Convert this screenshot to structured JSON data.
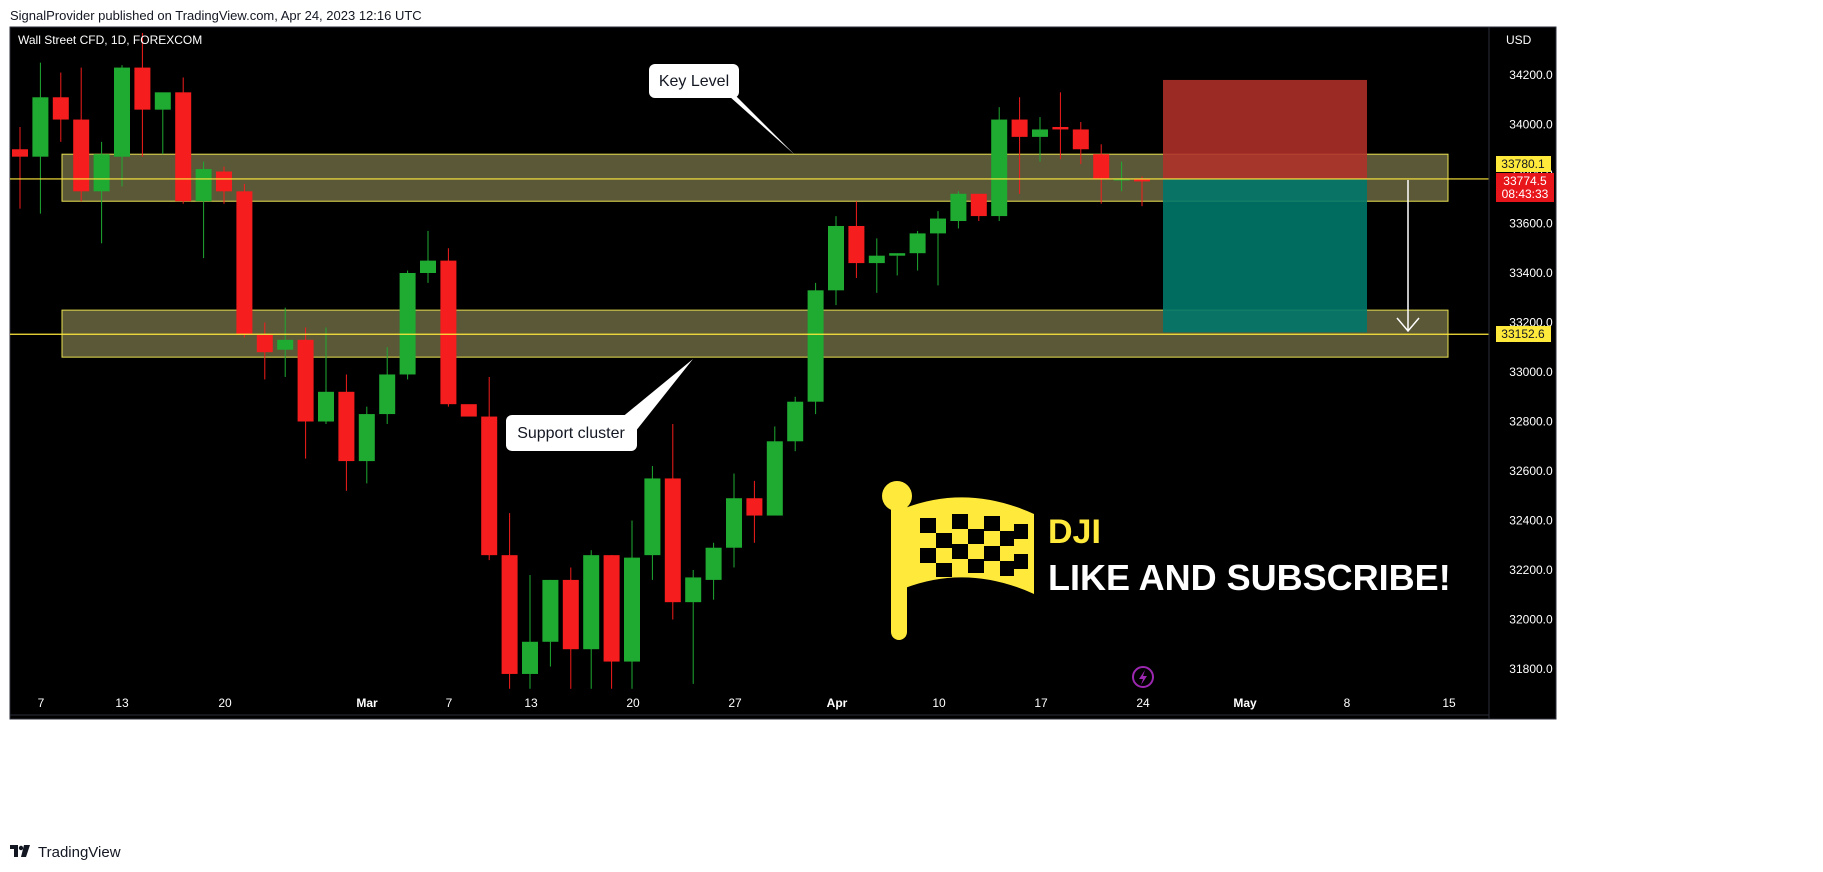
{
  "header": {
    "publish_line": "SignalProvider published on TradingView.com, Apr 24, 2023 12:16 UTC"
  },
  "footer": {
    "brand": "TradingView"
  },
  "chart_title": "Wall Street CFD, 1D, FOREXCOM",
  "currency": "USD",
  "price_labels": {
    "upper_level": "33780.1",
    "current_price": "33774.5",
    "countdown": "08:43:33",
    "lower_level": "33152.6"
  },
  "callouts": {
    "key_level": "Key Level",
    "support": "Support cluster"
  },
  "promo": {
    "ticker": "DJI",
    "cta": "LIKE AND SUBSCRIBE!"
  },
  "colors": {
    "background": "#000000",
    "up": "#1faa32",
    "down": "#f51d1d",
    "zone_fill": "#6b6742",
    "zone_border": "#e8e050",
    "flag": "#ffe93b",
    "stop_zone": "#b0302a",
    "target_zone": "#00786a",
    "price_line": "#ffe93b",
    "current_label": "#e8161b"
  },
  "chart_data": {
    "type": "candlestick",
    "title": "Wall Street CFD, 1D, FOREXCOM",
    "ylabel": "USD",
    "ylim": [
      31650,
      34450
    ],
    "y_ticks": [
      31800,
      32000,
      32200,
      32400,
      32600,
      32800,
      33000,
      33200,
      33400,
      33600,
      33800,
      34000,
      34200
    ],
    "x_ticks": [
      "7",
      "13",
      "20",
      "Mar",
      "7",
      "13",
      "20",
      "27",
      "Apr",
      "10",
      "17",
      "24",
      "May",
      "8",
      "15"
    ],
    "candles": [
      {
        "o": 33900,
        "h": 33990,
        "l": 33660,
        "c": 33870
      },
      {
        "o": 33870,
        "h": 34250,
        "l": 33640,
        "c": 34110
      },
      {
        "o": 34110,
        "h": 34210,
        "l": 33930,
        "c": 34020
      },
      {
        "o": 34020,
        "h": 34230,
        "l": 33690,
        "c": 33730
      },
      {
        "o": 33730,
        "h": 33930,
        "l": 33520,
        "c": 33880
      },
      {
        "o": 33870,
        "h": 34240,
        "l": 33750,
        "c": 34230
      },
      {
        "o": 34230,
        "h": 34370,
        "l": 33870,
        "c": 34060
      },
      {
        "o": 34060,
        "h": 34120,
        "l": 33880,
        "c": 34130
      },
      {
        "o": 34130,
        "h": 34190,
        "l": 33680,
        "c": 33690
      },
      {
        "o": 33690,
        "h": 33850,
        "l": 33460,
        "c": 33820
      },
      {
        "o": 33810,
        "h": 33830,
        "l": 33680,
        "c": 33730
      },
      {
        "o": 33730,
        "h": 33760,
        "l": 33140,
        "c": 33150
      },
      {
        "o": 33150,
        "h": 33200,
        "l": 32970,
        "c": 33080
      },
      {
        "o": 33090,
        "h": 33260,
        "l": 32980,
        "c": 33130
      },
      {
        "o": 33130,
        "h": 33180,
        "l": 32650,
        "c": 32800
      },
      {
        "o": 32800,
        "h": 33180,
        "l": 32790,
        "c": 32920
      },
      {
        "o": 32920,
        "h": 32990,
        "l": 32520,
        "c": 32640
      },
      {
        "o": 32640,
        "h": 32860,
        "l": 32550,
        "c": 32830
      },
      {
        "o": 32830,
        "h": 33100,
        "l": 32790,
        "c": 32990
      },
      {
        "o": 32990,
        "h": 33410,
        "l": 32970,
        "c": 33400
      },
      {
        "o": 33400,
        "h": 33570,
        "l": 33360,
        "c": 33450
      },
      {
        "o": 33450,
        "h": 33500,
        "l": 32860,
        "c": 32870
      },
      {
        "o": 32870,
        "h": 32860,
        "l": 32820,
        "c": 32820
      },
      {
        "o": 32820,
        "h": 32980,
        "l": 32240,
        "c": 32260
      },
      {
        "o": 32260,
        "h": 32430,
        "l": 31720,
        "c": 31780
      },
      {
        "o": 31780,
        "h": 32180,
        "l": 31720,
        "c": 31910
      },
      {
        "o": 31910,
        "h": 32160,
        "l": 31810,
        "c": 32160
      },
      {
        "o": 32160,
        "h": 32210,
        "l": 31720,
        "c": 31880
      },
      {
        "o": 31880,
        "h": 32280,
        "l": 31720,
        "c": 32260
      },
      {
        "o": 32260,
        "h": 32260,
        "l": 31720,
        "c": 31830
      },
      {
        "o": 31830,
        "h": 32400,
        "l": 31720,
        "c": 32250
      },
      {
        "o": 32260,
        "h": 32620,
        "l": 32160,
        "c": 32570
      },
      {
        "o": 32570,
        "h": 32790,
        "l": 32000,
        "c": 32070
      },
      {
        "o": 32070,
        "h": 32200,
        "l": 31740,
        "c": 32170
      },
      {
        "o": 32160,
        "h": 32310,
        "l": 32080,
        "c": 32290
      },
      {
        "o": 32290,
        "h": 32590,
        "l": 32210,
        "c": 32490
      },
      {
        "o": 32490,
        "h": 32560,
        "l": 32310,
        "c": 32420
      },
      {
        "o": 32420,
        "h": 32780,
        "l": 32430,
        "c": 32720
      },
      {
        "o": 32720,
        "h": 32900,
        "l": 32680,
        "c": 32880
      },
      {
        "o": 32880,
        "h": 33360,
        "l": 32830,
        "c": 33330
      },
      {
        "o": 33330,
        "h": 33630,
        "l": 33270,
        "c": 33590
      },
      {
        "o": 33590,
        "h": 33690,
        "l": 33380,
        "c": 33440
      },
      {
        "o": 33440,
        "h": 33540,
        "l": 33320,
        "c": 33470
      },
      {
        "o": 33470,
        "h": 33470,
        "l": 33390,
        "c": 33480
      },
      {
        "o": 33480,
        "h": 33570,
        "l": 33410,
        "c": 33560
      },
      {
        "o": 33560,
        "h": 33650,
        "l": 33350,
        "c": 33620
      },
      {
        "o": 33610,
        "h": 33730,
        "l": 33580,
        "c": 33720
      },
      {
        "o": 33720,
        "h": 33710,
        "l": 33610,
        "c": 33630
      },
      {
        "o": 33630,
        "h": 34070,
        "l": 33610,
        "c": 34020
      },
      {
        "o": 34020,
        "h": 34110,
        "l": 33720,
        "c": 33950
      },
      {
        "o": 33950,
        "h": 34030,
        "l": 33850,
        "c": 33980
      },
      {
        "o": 33990,
        "h": 34130,
        "l": 33860,
        "c": 33980
      },
      {
        "o": 33980,
        "h": 34010,
        "l": 33840,
        "c": 33900
      },
      {
        "o": 33880,
        "h": 33920,
        "l": 33680,
        "c": 33780
      },
      {
        "o": 33780,
        "h": 33850,
        "l": 33730,
        "c": 33780
      },
      {
        "o": 33780,
        "h": 33790,
        "l": 33670,
        "c": 33770
      }
    ],
    "zones": [
      {
        "from": 33690,
        "to": 33880
      },
      {
        "from": 33060,
        "to": 33250
      }
    ],
    "horizontal_lines": [
      33780.1,
      33152.6
    ],
    "position": {
      "entry": 33780.1,
      "stop": 34180,
      "target": 33160
    }
  }
}
